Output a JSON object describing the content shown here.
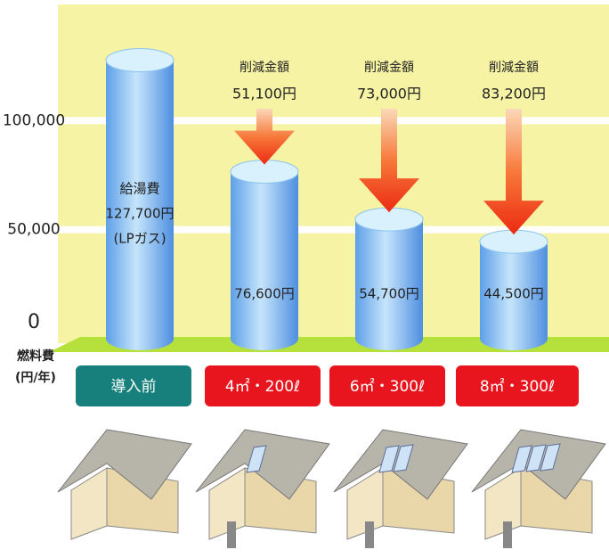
{
  "chart_data": {
    "type": "bar",
    "categories": [
      "導入前",
      "4㎡・200ℓ",
      "6㎡・300ℓ",
      "8㎡・300ℓ"
    ],
    "category_colors": [
      "#17807c",
      "#e8141e",
      "#e8141e",
      "#e8141e"
    ],
    "values": [
      127700,
      76600,
      54700,
      44500
    ],
    "value_labels": [
      "127,700円",
      "76,600円",
      "54,700円",
      "44,500円"
    ],
    "first_bar_text": [
      "給湯費",
      "(LPガス)"
    ],
    "color": "#a9d4f5",
    "savings": {
      "label": "削減金額",
      "values": [
        null,
        51100,
        73000,
        83200
      ],
      "value_labels": [
        null,
        "51,100円",
        "73,000円",
        "83,200円"
      ],
      "color": "#f0421e"
    },
    "ylim": [
      0,
      150000
    ],
    "yticks": [
      0,
      {
        "value": 50000,
        "label": "50,000"
      },
      {
        "value": 100000,
        "label": "100,000"
      }
    ],
    "y_label": [
      "燃料費",
      "(円/年)"
    ],
    "grid": true
  }
}
